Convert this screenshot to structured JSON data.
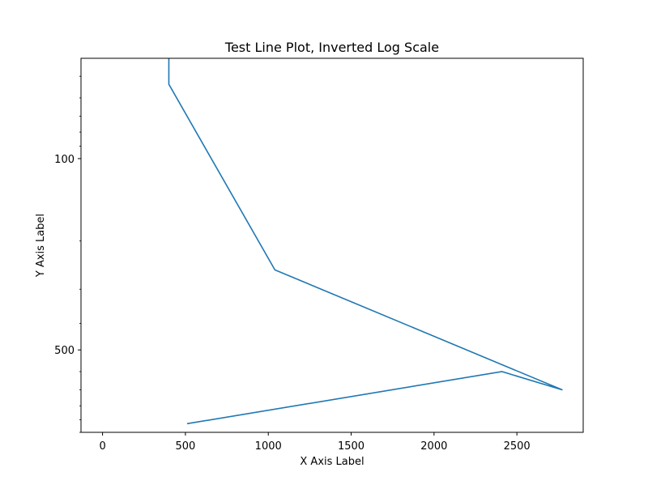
{
  "chart_data": {
    "type": "line",
    "title": "Test Line Plot, Inverted Log Scale",
    "xlabel": "X Axis Label",
    "ylabel": "Y Axis Label",
    "x_ticks": [
      0,
      500,
      1000,
      1500,
      2000,
      2500
    ],
    "x_tick_labels": [
      "0",
      "500",
      "1000",
      "1500",
      "2000",
      "2500"
    ],
    "y_ticks": [
      100,
      500
    ],
    "y_tick_labels": [
      "100",
      "500"
    ],
    "xlim": [
      -130,
      2900
    ],
    "ylim": [
      43,
      1000
    ],
    "y_scale": "log",
    "y_inverted": true,
    "grid": false,
    "series": [
      {
        "color": "#1f77b4",
        "x": [
          400,
          400,
          1040,
          2775,
          2410,
          510
        ],
        "y": [
          43,
          53.5,
          255,
          700,
          600,
          930
        ]
      }
    ]
  }
}
